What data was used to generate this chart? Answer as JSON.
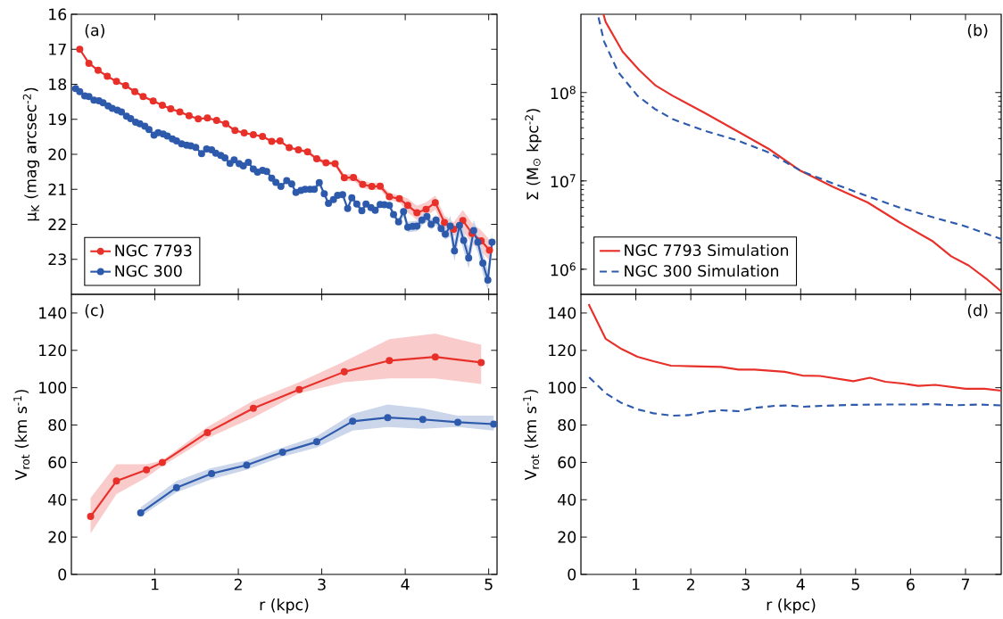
{
  "chart_data": [
    {
      "type": "line",
      "ylabel": "μ$_{K}$ (mag arcsec$^{-2}$)",
      "annotations": [
        "(a)"
      ],
      "xlim": [
        0,
        5.1
      ],
      "xticks": [
        1,
        2,
        3,
        4,
        5
      ],
      "ylim": [
        24,
        16
      ],
      "yticks": [
        16,
        17,
        18,
        19,
        20,
        21,
        22,
        23
      ],
      "tick_labels": "y",
      "marker": "circle",
      "legend": "bottom left",
      "series": [
        {
          "name": "NGC 7793",
          "color": "#e8302a",
          "x": [
            0.1,
            0.21,
            0.32,
            0.43,
            0.54,
            0.65,
            0.76,
            0.86,
            0.98,
            1.09,
            1.19,
            1.3,
            1.41,
            1.52,
            1.63,
            1.74,
            1.85,
            1.96,
            2.07,
            2.18,
            2.29,
            2.4,
            2.5,
            2.61,
            2.72,
            2.83,
            2.94,
            3.05,
            3.16,
            3.27,
            3.38,
            3.49,
            3.6,
            3.7,
            3.81,
            3.93,
            4.03,
            4.14,
            4.25,
            4.36,
            4.47,
            4.58,
            4.69,
            4.8,
            4.91,
            5.01
          ],
          "values": [
            17.0,
            17.4,
            17.6,
            17.77,
            17.92,
            18.04,
            18.21,
            18.35,
            18.48,
            18.6,
            18.7,
            18.79,
            18.9,
            18.99,
            18.96,
            19.03,
            19.13,
            19.32,
            19.39,
            19.44,
            19.49,
            19.63,
            19.62,
            19.81,
            19.87,
            19.93,
            20.13,
            20.24,
            20.27,
            20.67,
            20.66,
            20.86,
            20.92,
            20.91,
            21.21,
            21.27,
            21.46,
            21.67,
            21.57,
            21.38,
            21.95,
            22.14,
            21.89,
            22.26,
            22.47,
            22.74
          ],
          "lower": [
            16.97,
            17.37,
            17.57,
            17.74,
            17.89,
            18.01,
            18.18,
            18.32,
            18.45,
            18.57,
            18.67,
            18.76,
            18.87,
            18.96,
            18.93,
            19.0,
            19.1,
            19.29,
            19.36,
            19.41,
            19.46,
            19.6,
            19.59,
            19.78,
            19.84,
            19.87,
            20.07,
            20.18,
            20.21,
            20.57,
            20.56,
            20.76,
            20.82,
            20.81,
            21.11,
            21.17,
            21.26,
            21.47,
            21.37,
            21.18,
            21.75,
            21.94,
            21.59,
            21.96,
            22.17,
            22.44
          ],
          "upper": [
            17.03,
            17.43,
            17.63,
            17.8,
            17.95,
            18.07,
            18.24,
            18.38,
            18.51,
            18.63,
            18.73,
            18.82,
            18.93,
            19.02,
            18.99,
            19.06,
            19.16,
            19.35,
            19.42,
            19.47,
            19.52,
            19.66,
            19.65,
            19.84,
            19.9,
            19.99,
            20.19,
            20.3,
            20.33,
            20.77,
            20.76,
            20.96,
            21.02,
            21.01,
            21.31,
            21.37,
            21.66,
            21.87,
            21.77,
            21.58,
            22.15,
            22.34,
            22.19,
            22.56,
            22.77,
            23.04
          ]
        },
        {
          "name": "NGC 300",
          "color": "#2e5aac",
          "x": [
            0.05,
            0.1,
            0.16,
            0.21,
            0.27,
            0.33,
            0.38,
            0.44,
            0.49,
            0.55,
            0.6,
            0.66,
            0.71,
            0.77,
            0.82,
            0.88,
            0.93,
            0.99,
            1.04,
            1.1,
            1.15,
            1.21,
            1.26,
            1.32,
            1.38,
            1.43,
            1.49,
            1.56,
            1.62,
            1.68,
            1.73,
            1.79,
            1.84,
            1.9,
            1.95,
            2.01,
            2.06,
            2.12,
            2.18,
            2.23,
            2.29,
            2.34,
            2.4,
            2.45,
            2.51,
            2.58,
            2.64,
            2.69,
            2.75,
            2.8,
            2.86,
            2.91,
            2.97,
            3.03,
            3.08,
            3.14,
            3.19,
            3.25,
            3.31,
            3.36,
            3.42,
            3.48,
            3.53,
            3.59,
            3.64,
            3.7,
            3.75,
            3.81,
            3.86,
            3.92,
            3.98,
            4.03,
            4.09,
            4.14,
            4.2,
            4.26,
            4.31,
            4.37,
            4.43,
            4.48,
            4.54,
            4.59,
            4.65,
            4.7,
            4.76,
            4.82,
            4.87,
            4.93,
            4.99,
            5.04
          ],
          "values": [
            18.12,
            18.21,
            18.33,
            18.35,
            18.45,
            18.47,
            18.53,
            18.62,
            18.69,
            18.74,
            18.79,
            18.91,
            18.98,
            19.08,
            19.13,
            19.2,
            19.29,
            19.45,
            19.38,
            19.42,
            19.48,
            19.56,
            19.62,
            19.7,
            19.74,
            19.76,
            19.8,
            19.98,
            19.85,
            19.87,
            19.97,
            20.03,
            20.1,
            20.26,
            20.16,
            20.27,
            20.33,
            20.23,
            20.42,
            20.51,
            20.46,
            20.49,
            20.68,
            20.8,
            20.92,
            20.75,
            20.85,
            21.09,
            21.03,
            21.0,
            21.0,
            21.0,
            20.81,
            21.13,
            21.4,
            21.29,
            21.17,
            21.15,
            21.55,
            21.24,
            21.42,
            21.61,
            21.42,
            21.52,
            21.6,
            21.43,
            21.44,
            21.46,
            21.72,
            21.93,
            21.64,
            22.08,
            22.06,
            22.05,
            21.88,
            21.78,
            22.0,
            21.88,
            22.12,
            22.28,
            22.05,
            22.76,
            22.03,
            22.46,
            22.96,
            22.18,
            22.51,
            23.11,
            23.59,
            22.51
          ],
          "lower": [
            18.09,
            18.18,
            18.3,
            18.32,
            18.42,
            18.44,
            18.5,
            18.59,
            18.66,
            18.71,
            18.76,
            18.88,
            18.95,
            19.05,
            19.1,
            19.17,
            19.26,
            19.42,
            19.35,
            19.39,
            19.45,
            19.53,
            19.59,
            19.67,
            19.71,
            19.73,
            19.77,
            19.95,
            19.82,
            19.84,
            19.94,
            20.0,
            20.07,
            20.23,
            20.13,
            20.24,
            20.3,
            20.2,
            20.39,
            20.48,
            20.43,
            20.46,
            20.65,
            20.77,
            20.89,
            20.67,
            20.77,
            21.01,
            20.95,
            20.92,
            20.92,
            20.92,
            20.73,
            21.05,
            21.32,
            21.21,
            21.09,
            21.07,
            21.47,
            21.16,
            21.34,
            21.53,
            21.34,
            21.44,
            21.52,
            21.35,
            21.36,
            21.38,
            21.64,
            21.85,
            21.49,
            21.93,
            21.91,
            21.9,
            21.73,
            21.63,
            21.85,
            21.73,
            21.97,
            22.13,
            21.75,
            22.46,
            21.73,
            22.16,
            22.66,
            21.88,
            22.21,
            22.81,
            23.29,
            22.21
          ],
          "upper": [
            18.15,
            18.24,
            18.36,
            18.38,
            18.48,
            18.5,
            18.56,
            18.65,
            18.72,
            18.77,
            18.82,
            18.94,
            19.01,
            19.11,
            19.16,
            19.23,
            19.32,
            19.48,
            19.41,
            19.45,
            19.51,
            19.59,
            19.65,
            19.73,
            19.77,
            19.79,
            19.83,
            20.01,
            19.88,
            19.9,
            20.0,
            20.06,
            20.13,
            20.29,
            20.19,
            20.3,
            20.36,
            20.26,
            20.45,
            20.54,
            20.49,
            20.52,
            20.71,
            20.83,
            20.95,
            20.83,
            20.93,
            21.17,
            21.11,
            21.08,
            21.08,
            21.08,
            20.89,
            21.21,
            21.48,
            21.37,
            21.25,
            21.23,
            21.63,
            21.32,
            21.5,
            21.69,
            21.5,
            21.6,
            21.68,
            21.51,
            21.52,
            21.54,
            21.8,
            22.01,
            21.79,
            22.23,
            22.21,
            22.2,
            22.03,
            21.93,
            22.15,
            22.03,
            22.27,
            22.43,
            22.35,
            23.06,
            22.33,
            22.76,
            23.26,
            22.48,
            22.81,
            23.41,
            23.89,
            22.81
          ]
        }
      ]
    },
    {
      "type": "line",
      "ylabel": "Σ (M$_{⊙}$ kpc$^{-2}$)",
      "annotations": [
        "(b)"
      ],
      "xlim": [
        0,
        7.65
      ],
      "xticks": [
        1,
        2,
        3,
        4,
        5,
        6,
        7
      ],
      "ylim": [
        520000,
        770000000
      ],
      "log": "y",
      "yticks": [
        {
          "value": 1000000,
          "label": "10$^{6}$"
        },
        {
          "value": 10000000,
          "label": "10$^{7}$"
        },
        {
          "value": 100000000,
          "label": "10$^{8}$"
        }
      ],
      "tick_labels": "y",
      "legend": "bottom left",
      "series": [
        {
          "name": "NGC 7793 Simulation",
          "color": "#e8302a",
          "line_style": "solid",
          "x": [
            0.41,
            0.45,
            0.76,
            1.06,
            1.36,
            1.67,
            2.25,
            2.83,
            3.42,
            4.0,
            4.58,
            5.22,
            5.8,
            6.39,
            6.74,
            7.06,
            7.38,
            7.65
          ],
          "values": [
            770000000.0,
            630000000.0,
            290000000.0,
            180000000.0,
            120000000.0,
            92000000.0,
            59000000.0,
            37000000.0,
            23000000.0,
            13000000.0,
            8600000.0,
            5700000.0,
            3400000.0,
            2100000.0,
            1400000.0,
            1100000.0,
            780000.0,
            560000.0
          ]
        },
        {
          "name": "NGC 300 Simulation",
          "color": "#2e5aac",
          "line_style": "dashed",
          "x": [
            0.32,
            0.42,
            0.68,
            1.03,
            1.35,
            1.67,
            2.25,
            2.83,
            3.42,
            4.0,
            4.58,
            5.22,
            5.8,
            6.39,
            6.97,
            7.65
          ],
          "values": [
            710000000.0,
            380000000.0,
            170000000.0,
            92000000.0,
            65000000.0,
            50000000.0,
            37000000.0,
            29000000.0,
            21000000.0,
            13000000.0,
            9400000.0,
            6700000.0,
            5000000.0,
            3900000.0,
            3100000.0,
            2200000.0
          ]
        }
      ]
    },
    {
      "type": "line",
      "xlabel": "r (kpc)",
      "ylabel": "V$_{rot}$ (km s$^{-1}$)",
      "annotations": [
        "(c)"
      ],
      "xlim": [
        0,
        5.1
      ],
      "xticks": [
        1,
        2,
        3,
        4,
        5
      ],
      "ylim": [
        0,
        150
      ],
      "yticks": [
        0,
        20,
        40,
        60,
        80,
        100,
        120,
        140
      ],
      "marker": "circle",
      "series": [
        {
          "color": "#e8302a",
          "x": [
            0.23,
            0.54,
            0.9,
            1.09,
            1.63,
            2.18,
            2.73,
            3.27,
            3.81,
            4.36,
            4.91
          ],
          "values": [
            31,
            50,
            56,
            60,
            76,
            89,
            99,
            108.5,
            114.5,
            116.5,
            113.5
          ],
          "lower": [
            22,
            43,
            52,
            58,
            73,
            84,
            97,
            103,
            105,
            105,
            102
          ],
          "upper": [
            41,
            59,
            59,
            61,
            79,
            93,
            103,
            114,
            126,
            129,
            123
          ]
        },
        {
          "color": "#2e5aac",
          "x": [
            0.83,
            1.26,
            1.68,
            2.1,
            2.53,
            2.94,
            3.37,
            3.79,
            4.21,
            4.63,
            5.06
          ],
          "values": [
            33,
            46.5,
            54,
            58.5,
            65.5,
            71,
            82,
            84,
            83,
            81.5,
            80.5
          ],
          "lower": [
            31,
            44,
            51,
            56,
            63,
            68,
            77,
            79,
            78,
            79,
            77
          ],
          "upper": [
            36,
            50,
            57,
            61,
            68,
            74,
            86,
            91,
            89,
            85,
            85
          ]
        }
      ]
    },
    {
      "type": "line",
      "xlabel": "r (kpc)",
      "ylabel": "V$_{rot}$ (km s$^{-1}$)",
      "annotations": [
        "(d)"
      ],
      "xlim": [
        0,
        7.65
      ],
      "xticks": [
        1,
        2,
        3,
        4,
        5,
        6,
        7
      ],
      "ylim": [
        0,
        150
      ],
      "yticks": [
        0,
        20,
        40,
        60,
        80,
        100,
        120,
        140
      ],
      "series": [
        {
          "color": "#e8302a",
          "line_style": "solid",
          "x": [
            0.14,
            0.45,
            0.74,
            1.03,
            1.32,
            1.64,
            2.02,
            2.55,
            2.87,
            3.16,
            3.71,
            4.03,
            4.35,
            4.96,
            5.26,
            5.54,
            5.86,
            6.14,
            6.45,
            7.0,
            7.35,
            7.65
          ],
          "values": [
            144.7,
            126.2,
            120.7,
            116.6,
            114.2,
            111.8,
            111.5,
            111.1,
            109.7,
            109.7,
            108.5,
            106.5,
            106.3,
            103.5,
            105.3,
            103.2,
            102.2,
            101.0,
            101.5,
            99.4,
            99.4,
            98.4
          ]
        },
        {
          "color": "#2e5aac",
          "line_style": "dashed",
          "x": [
            0.15,
            0.45,
            0.74,
            1.03,
            1.32,
            1.67,
            1.96,
            2.25,
            2.55,
            2.87,
            3.19,
            3.54,
            3.77,
            4.06,
            4.41,
            4.93,
            5.51,
            6.1,
            6.39,
            6.8,
            7.26,
            7.65
          ],
          "values": [
            105.6,
            97.0,
            91.8,
            88.4,
            86.3,
            85.0,
            85.3,
            87.0,
            87.9,
            87.4,
            89.3,
            90.3,
            90.5,
            89.8,
            90.3,
            90.8,
            91.0,
            91.0,
            91.2,
            90.6,
            91.0,
            90.5
          ]
        }
      ]
    }
  ]
}
